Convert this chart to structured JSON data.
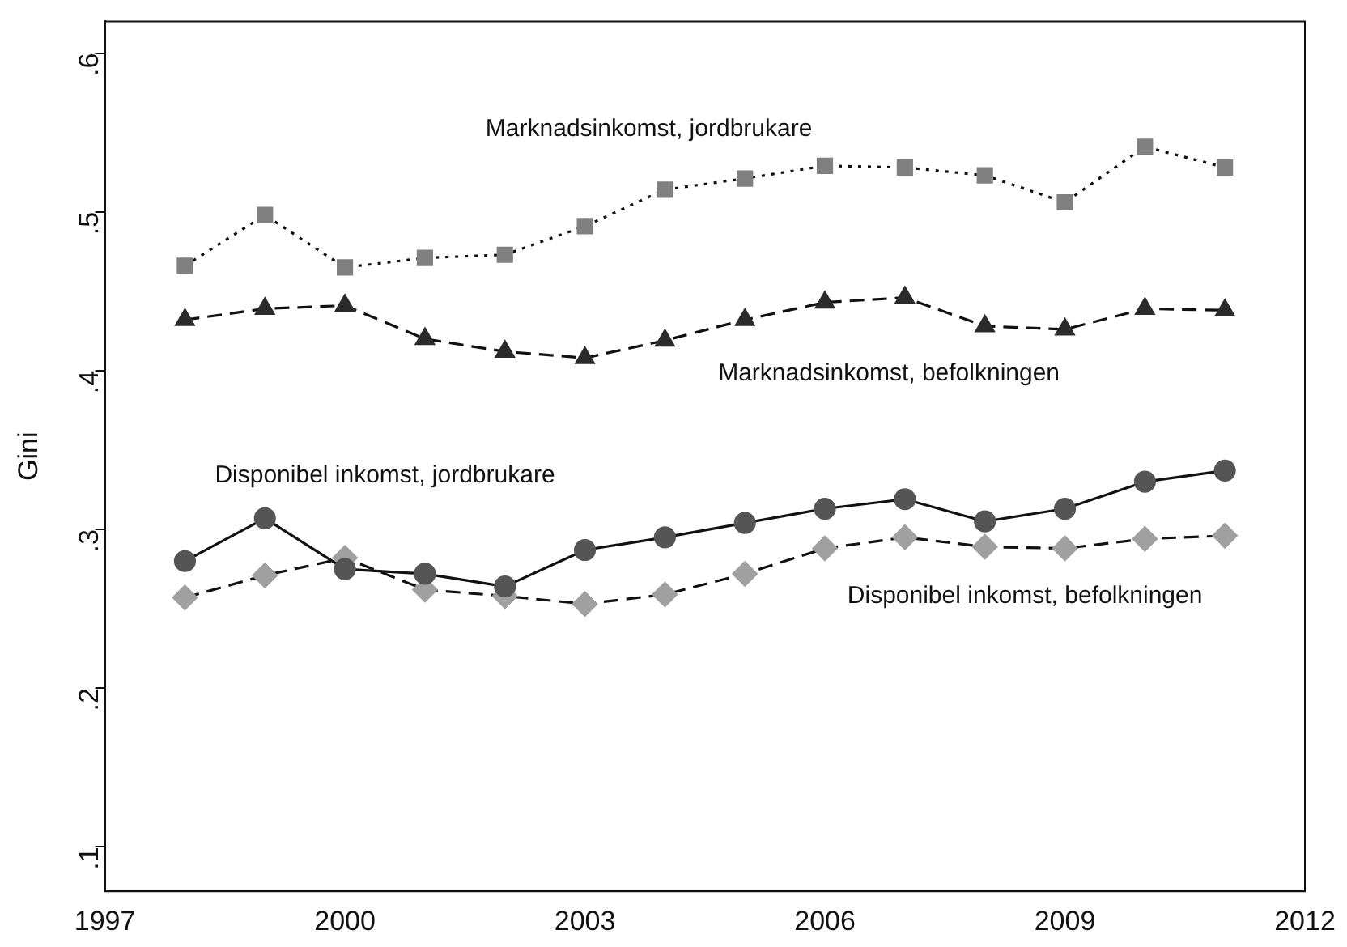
{
  "chart_data": {
    "type": "line",
    "ylabel": "Gini",
    "x": [
      1998,
      1999,
      2000,
      2001,
      2002,
      2003,
      2004,
      2005,
      2006,
      2007,
      2008,
      2009,
      2010,
      2011
    ],
    "xlim": [
      1997,
      2012
    ],
    "xticks": [
      1997,
      2000,
      2003,
      2006,
      2009,
      2012
    ],
    "ylim": [
      0.072,
      0.62
    ],
    "yticks": [
      {
        "value": 0.1,
        "label": ".1"
      },
      {
        "value": 0.2,
        "label": ".2"
      },
      {
        "value": 0.3,
        "label": ".3"
      },
      {
        "value": 0.4,
        "label": ".4"
      },
      {
        "value": 0.5,
        "label": ".5"
      },
      {
        "value": 0.6,
        "label": ".6"
      }
    ],
    "grid": false,
    "legend": false,
    "series": [
      {
        "name": "Marknadsinkomst, jordbrukare",
        "color": "#808080",
        "marker": "square",
        "line_style": "dotted",
        "values": [
          0.466,
          0.498,
          0.465,
          0.471,
          0.473,
          0.491,
          0.514,
          0.521,
          0.529,
          0.528,
          0.523,
          0.506,
          0.541,
          0.528
        ]
      },
      {
        "name": "Marknadsinkomst, befolkningen",
        "color": "#2b2b2b",
        "marker": "triangle",
        "line_style": "dashed",
        "values": [
          0.432,
          0.439,
          0.441,
          0.42,
          0.412,
          0.408,
          0.419,
          0.432,
          0.443,
          0.446,
          0.428,
          0.426,
          0.439,
          0.438
        ]
      },
      {
        "name": "Disponibel inkomst, jordbrukare",
        "color": "#555555",
        "marker": "circle",
        "line_style": "solid",
        "values": [
          0.28,
          0.307,
          0.275,
          0.272,
          0.264,
          0.287,
          0.295,
          0.304,
          0.313,
          0.319,
          0.305,
          0.313,
          0.33,
          0.337
        ]
      },
      {
        "name": "Disponibel inkomst, befolkningen",
        "color": "#a0a0a0",
        "marker": "diamond",
        "line_style": "dashed",
        "values": [
          0.257,
          0.271,
          0.282,
          0.262,
          0.258,
          0.253,
          0.259,
          0.272,
          0.288,
          0.295,
          0.289,
          0.288,
          0.294,
          0.296
        ]
      }
    ]
  }
}
